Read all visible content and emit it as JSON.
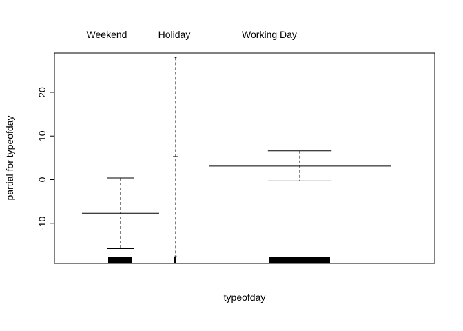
{
  "chart_data": {
    "type": "termplot",
    "categories": [
      "Weekend",
      "Holiday",
      "Working Day"
    ],
    "xlabel": "typeofday",
    "ylabel": "partial for typeofday",
    "ylim": [
      -19.2,
      29
    ],
    "yticks": [
      -10,
      0,
      10,
      20
    ],
    "ytick_labels": [
      "-10",
      "0",
      "10",
      "20"
    ],
    "levels": [
      {
        "name": "Weekend",
        "partial": -7.7,
        "upper": 0.4,
        "lower": -15.8,
        "rug": true
      },
      {
        "name": "Holiday",
        "partial": 5.3,
        "upper": 28.0,
        "lower": -17.5,
        "rug": true
      },
      {
        "name": "Working Day",
        "partial": 3.1,
        "upper": 6.6,
        "lower": -0.3,
        "rug": true
      }
    ],
    "colors": {
      "line": "#000000",
      "background": "#ffffff"
    }
  }
}
